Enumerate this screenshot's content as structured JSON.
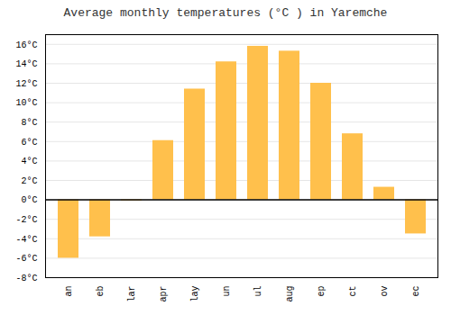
{
  "chart_data": {
    "type": "bar",
    "title": "Average monthly temperatures (°C ) in Yaremche",
    "categories": [
      "an",
      "eb",
      "lar",
      "apr",
      "lay",
      "un",
      "ul",
      "aug",
      "ep",
      "ct",
      "ov",
      "ec"
    ],
    "values": [
      -6.0,
      -3.8,
      -0.1,
      6.1,
      11.4,
      14.2,
      15.8,
      15.3,
      12.0,
      6.8,
      1.3,
      -3.5
    ],
    "color": "#FFC04C",
    "ylim": [
      -8,
      17
    ],
    "yticks": [
      {
        "value": -8,
        "label": "-8°C"
      },
      {
        "value": -6,
        "label": "-6°C"
      },
      {
        "value": -4,
        "label": "-4°C"
      },
      {
        "value": -2,
        "label": "-2°C"
      },
      {
        "value": 0,
        "label": "0°C"
      },
      {
        "value": 2,
        "label": "2°C"
      },
      {
        "value": 4,
        "label": "4°C"
      },
      {
        "value": 6,
        "label": "6°C"
      },
      {
        "value": 8,
        "label": "8°C"
      },
      {
        "value": 10,
        "label": "10°C"
      },
      {
        "value": 12,
        "label": "12°C"
      },
      {
        "value": 14,
        "label": "14°C"
      },
      {
        "value": 16,
        "label": "16°C"
      }
    ],
    "grid": true
  }
}
